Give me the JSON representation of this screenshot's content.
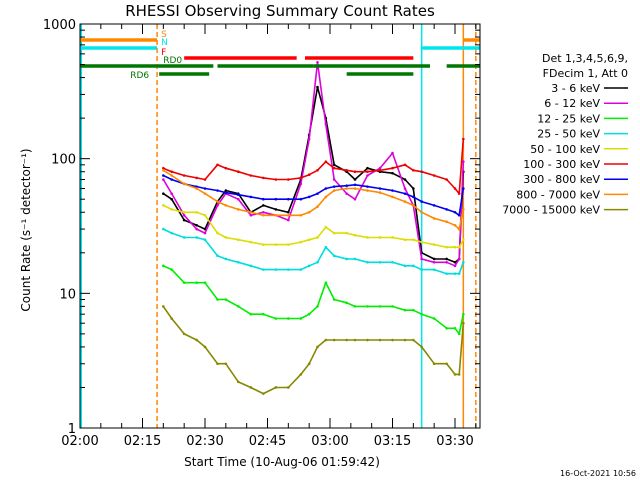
{
  "chart_data": {
    "type": "line",
    "title": "RHESSI Observing Summary Count Rates",
    "xlabel": "Start Time (10-Aug-06 01:59:42)",
    "ylabel": "Count Rate (s⁻¹ detector⁻¹)",
    "y_scale": "log",
    "ylim": [
      1,
      1000
    ],
    "xlim_minutes_after_0200": [
      0,
      96
    ],
    "x_ticks": [
      "02:00",
      "02:15",
      "02:30",
      "02:45",
      "03:00",
      "03:15",
      "03:30"
    ],
    "y_ticks": [
      "1",
      "10",
      "100",
      "1000"
    ],
    "footer_timestamp": "16-Oct-2021 10:56",
    "legend_header": [
      "Det 1,3,4,5,6,9,",
      "FDecim 1, Att 0"
    ],
    "flag_labels": [
      "S",
      "N",
      "F",
      "RD0",
      "RD6"
    ],
    "flag_colors": [
      "#ff8800",
      "#00e5ee",
      "#ff0000",
      "#007700",
      "#007700"
    ],
    "flag_intervals": [
      [
        [
          0,
          18.5
        ],
        [
          92,
          96
        ]
      ],
      [
        [
          0,
          18.5
        ],
        [
          82,
          96
        ]
      ],
      [
        [
          25,
          52
        ],
        [
          54,
          80
        ]
      ],
      [
        [
          0,
          32
        ],
        [
          33,
          56
        ],
        [
          56,
          84
        ],
        [
          88,
          96
        ]
      ],
      [
        [
          19,
          31
        ],
        [
          64,
          80
        ]
      ]
    ],
    "vertical_markers": [
      {
        "t": 18.5,
        "color": "#ff8800",
        "style": "dash"
      },
      {
        "t": 0.3,
        "color": "#00e5ee",
        "style": "solid"
      },
      {
        "t": 82,
        "color": "#00e5ee",
        "style": "solid"
      },
      {
        "t": 92,
        "color": "#ff8800",
        "style": "solid"
      },
      {
        "t": 95,
        "color": "#ff8800",
        "style": "dash"
      }
    ],
    "x": [
      20,
      22,
      25,
      28,
      30,
      33,
      35,
      38,
      41,
      44,
      47,
      50,
      53,
      55,
      57,
      59,
      61,
      64,
      66,
      69,
      72,
      75,
      78,
      80,
      82,
      85,
      88,
      90,
      91,
      92
    ],
    "series": [
      {
        "name": "3 - 6 keV",
        "color": "#000000",
        "values": [
          55,
          50,
          35,
          32,
          30,
          48,
          58,
          55,
          40,
          45,
          42,
          40,
          70,
          150,
          340,
          200,
          90,
          80,
          70,
          85,
          80,
          78,
          70,
          60,
          20,
          18,
          18,
          17,
          18,
          80
        ]
      },
      {
        "name": "6 - 12 keV",
        "color": "#dd00dd",
        "values": [
          70,
          55,
          38,
          30,
          28,
          45,
          55,
          50,
          38,
          40,
          38,
          35,
          65,
          140,
          520,
          180,
          70,
          55,
          50,
          75,
          85,
          110,
          60,
          45,
          18,
          17,
          17,
          16,
          18,
          95
        ]
      },
      {
        "name": "12 - 25 keV",
        "color": "#00ee00",
        "values": [
          16,
          15,
          12,
          12,
          12,
          9,
          9,
          8,
          7,
          7,
          6.5,
          6.5,
          6.5,
          7,
          8,
          12,
          9,
          8.5,
          8,
          8,
          8,
          8,
          7.5,
          7.5,
          7,
          6.5,
          5.5,
          5.5,
          5,
          7
        ]
      },
      {
        "name": "25 - 50 keV",
        "color": "#00dddd",
        "values": [
          30,
          28,
          26,
          26,
          25,
          19,
          18,
          17,
          16,
          15,
          15,
          15,
          15,
          16,
          17,
          22,
          19,
          18,
          18,
          17,
          17,
          17,
          16,
          16,
          15,
          15,
          14,
          14,
          14,
          17
        ]
      },
      {
        "name": "50 - 100 keV",
        "color": "#dddd00",
        "values": [
          45,
          42,
          40,
          40,
          38,
          28,
          26,
          25,
          24,
          23,
          23,
          23,
          24,
          25,
          26,
          31,
          28,
          28,
          27,
          26,
          26,
          26,
          25,
          25,
          24,
          23,
          22,
          22,
          22,
          25
        ]
      },
      {
        "name": "100 - 300 keV",
        "color": "#ee0000",
        "values": [
          85,
          80,
          75,
          72,
          70,
          90,
          85,
          80,
          75,
          72,
          70,
          70,
          72,
          76,
          82,
          95,
          85,
          82,
          80,
          80,
          82,
          85,
          90,
          82,
          80,
          75,
          70,
          60,
          55,
          140
        ]
      },
      {
        "name": "300 - 800 keV",
        "color": "#0000ee",
        "values": [
          75,
          70,
          65,
          62,
          60,
          58,
          56,
          54,
          52,
          50,
          50,
          50,
          50,
          52,
          55,
          60,
          62,
          63,
          64,
          62,
          60,
          58,
          55,
          52,
          48,
          45,
          42,
          40,
          38,
          60
        ]
      },
      {
        "name": "800 - 7000 keV",
        "color": "#ff8800",
        "values": [
          82,
          75,
          65,
          60,
          55,
          48,
          45,
          42,
          40,
          38,
          38,
          38,
          38,
          40,
          44,
          52,
          58,
          60,
          60,
          58,
          56,
          52,
          48,
          45,
          40,
          36,
          34,
          32,
          30,
          42
        ]
      },
      {
        "name": "7000 - 15000 keV",
        "color": "#888800",
        "values": [
          8,
          6.5,
          5,
          4.5,
          4,
          3,
          3,
          2.2,
          2,
          1.8,
          2,
          2,
          2.5,
          3,
          4,
          4.5,
          4.5,
          4.5,
          4.5,
          4.5,
          4.5,
          4.5,
          4.5,
          4.5,
          4,
          3,
          3,
          2.5,
          2.5,
          6
        ]
      }
    ]
  }
}
